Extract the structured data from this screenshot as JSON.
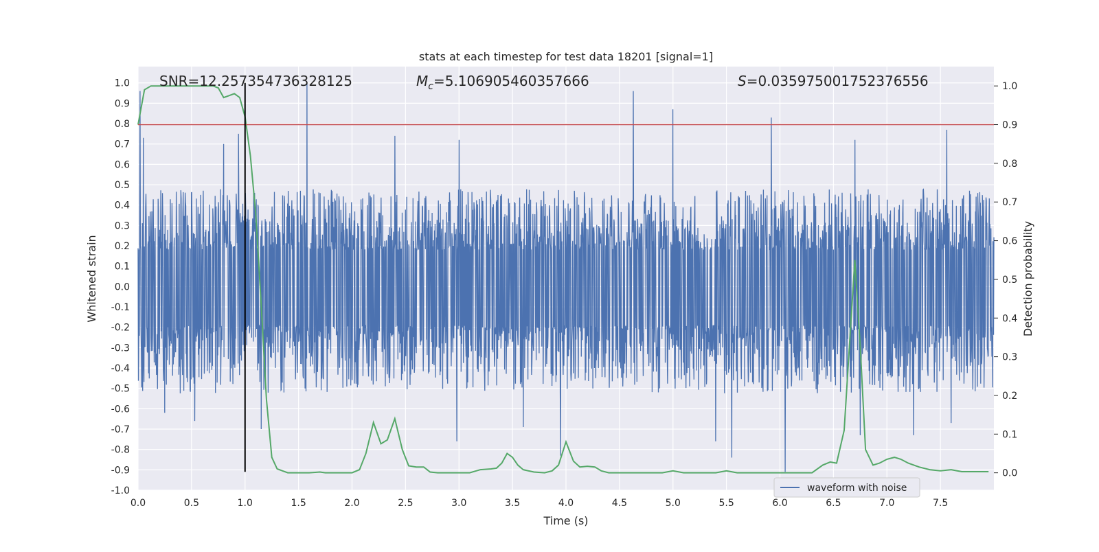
{
  "chart_data": {
    "type": "line",
    "title": "stats at each timestep for test data 18201 [signal=1]",
    "xlabel": "Time (s)",
    "ylabel_left": "Whitened strain",
    "ylabel_right": "Detection probability",
    "xlim": [
      0,
      8
    ],
    "ylim_left": [
      -1.0,
      1.08
    ],
    "ylim_right": [
      -0.045,
      1.05
    ],
    "x_ticks": [
      "0.0",
      "0.5",
      "1.0",
      "1.5",
      "2.0",
      "2.5",
      "3.0",
      "3.5",
      "4.0",
      "4.5",
      "5.0",
      "5.5",
      "6.0",
      "6.5",
      "7.0",
      "7.5"
    ],
    "y_ticks_left": [
      "-1.0",
      "-0.9",
      "-0.8",
      "-0.7",
      "-0.6",
      "-0.5",
      "-0.4",
      "-0.3",
      "-0.2",
      "-0.1",
      "0.0",
      "0.1",
      "0.2",
      "0.3",
      "0.4",
      "0.5",
      "0.6",
      "0.7",
      "0.8",
      "0.9",
      "1.0"
    ],
    "y_ticks_right": [
      "0.0",
      "0.1",
      "0.2",
      "0.3",
      "0.4",
      "0.5",
      "0.6",
      "0.7",
      "0.8",
      "0.9",
      "1.0"
    ],
    "grid": true,
    "legend_position": "lower-right",
    "annotations": {
      "snr": "SNR=12.257354736328125",
      "mc_symbol": "M",
      "mc_subscript": "c",
      "mc_value": "=5.106905460357666",
      "s_symbol": "S",
      "s_value": "=0.035975001752376556"
    },
    "series": [
      {
        "name": "waveform with noise",
        "axis": "left",
        "color": "#4c72b0",
        "t_start": 0,
        "t_end": 8,
        "envelope_typical": [
          -0.35,
          0.33
        ],
        "peaks": [
          {
            "x": 0.02,
            "y": 0.96
          },
          {
            "x": 0.05,
            "y": 0.73
          },
          {
            "x": 0.8,
            "y": 0.7
          },
          {
            "x": 0.94,
            "y": 0.75
          },
          {
            "x": 1.58,
            "y": 1.0
          },
          {
            "x": 2.4,
            "y": 0.74
          },
          {
            "x": 3.0,
            "y": 0.72
          },
          {
            "x": 4.63,
            "y": 0.96
          },
          {
            "x": 5.0,
            "y": 0.87
          },
          {
            "x": 5.92,
            "y": 0.83
          },
          {
            "x": 6.7,
            "y": 0.72
          },
          {
            "x": 7.56,
            "y": 0.77
          },
          {
            "x": 3.95,
            "y": -0.83
          },
          {
            "x": 6.05,
            "y": -0.91
          },
          {
            "x": 5.4,
            "y": -0.76
          },
          {
            "x": 5.55,
            "y": -0.84
          },
          {
            "x": 6.75,
            "y": -0.73
          },
          {
            "x": 2.98,
            "y": -0.76
          },
          {
            "x": 0.53,
            "y": -0.66
          },
          {
            "x": 0.25,
            "y": -0.62
          },
          {
            "x": 1.15,
            "y": -0.7
          },
          {
            "x": 3.6,
            "y": -0.69
          },
          {
            "x": 7.25,
            "y": -0.73
          },
          {
            "x": 7.6,
            "y": -0.67
          }
        ]
      },
      {
        "name": "",
        "axis": "right",
        "color": "#55a868",
        "x": [
          0.0,
          0.06,
          0.12,
          0.2,
          0.3,
          0.4,
          0.5,
          0.6,
          0.7,
          0.75,
          0.8,
          0.85,
          0.9,
          0.95,
          1.0,
          1.05,
          1.1,
          1.15,
          1.2,
          1.25,
          1.3,
          1.35,
          1.4,
          1.5,
          1.6,
          1.7,
          1.75,
          1.8,
          1.9,
          2.0,
          2.07,
          2.13,
          2.2,
          2.27,
          2.33,
          2.4,
          2.47,
          2.53,
          2.6,
          2.67,
          2.73,
          2.8,
          2.87,
          2.93,
          3.0,
          3.1,
          3.2,
          3.3,
          3.35,
          3.4,
          3.45,
          3.5,
          3.55,
          3.6,
          3.7,
          3.8,
          3.87,
          3.93,
          4.0,
          4.07,
          4.13,
          4.2,
          4.27,
          4.33,
          4.4,
          4.5,
          4.6,
          4.7,
          4.8,
          4.9,
          5.0,
          5.1,
          5.2,
          5.3,
          5.4,
          5.5,
          5.6,
          5.7,
          5.8,
          5.9,
          6.0,
          6.1,
          6.2,
          6.3,
          6.4,
          6.47,
          6.53,
          6.6,
          6.65,
          6.7,
          6.75,
          6.8,
          6.87,
          6.93,
          7.0,
          7.07,
          7.13,
          7.2,
          7.3,
          7.4,
          7.5,
          7.6,
          7.7,
          7.8,
          7.95
        ],
        "y": [
          0.9,
          0.99,
          1.0,
          1.0,
          1.0,
          1.0,
          1.0,
          1.0,
          1.0,
          0.995,
          0.97,
          0.975,
          0.98,
          0.97,
          0.92,
          0.82,
          0.67,
          0.44,
          0.19,
          0.04,
          0.01,
          0.005,
          0.0,
          0.0,
          0.0,
          0.002,
          0.0,
          0.0,
          0.0,
          0.0,
          0.008,
          0.05,
          0.13,
          0.075,
          0.085,
          0.14,
          0.06,
          0.018,
          0.015,
          0.015,
          0.002,
          0.0,
          0.0,
          0.0,
          0.0,
          0.0,
          0.008,
          0.01,
          0.012,
          0.025,
          0.05,
          0.04,
          0.02,
          0.008,
          0.002,
          0.0,
          0.005,
          0.02,
          0.08,
          0.03,
          0.015,
          0.017,
          0.015,
          0.005,
          0.0,
          0.0,
          0.0,
          0.0,
          0.0,
          0.0,
          0.005,
          0.0,
          0.0,
          0.0,
          0.0,
          0.005,
          0.0,
          0.0,
          0.0,
          0.0,
          0.0,
          0.0,
          0.0,
          0.0,
          0.02,
          0.028,
          0.025,
          0.11,
          0.33,
          0.55,
          0.33,
          0.06,
          0.02,
          0.025,
          0.035,
          0.04,
          0.035,
          0.025,
          0.015,
          0.008,
          0.005,
          0.008,
          0.003,
          0.003,
          0.003
        ]
      },
      {
        "name": "",
        "axis": "right",
        "color": "#c44e52",
        "type": "hline",
        "y": 0.9
      },
      {
        "name": "",
        "axis": "left",
        "color": "#000000",
        "type": "vline",
        "x": 1.0,
        "y_range": [
          -0.91,
          1.0
        ]
      }
    ]
  }
}
